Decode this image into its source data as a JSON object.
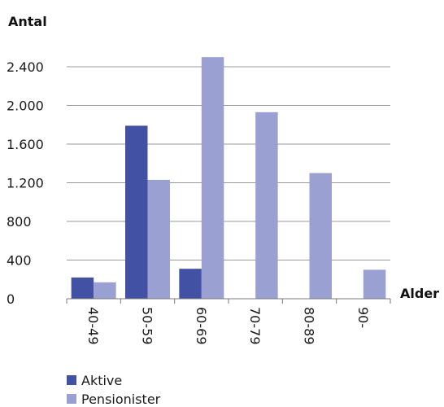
{
  "chart_data": {
    "type": "bar",
    "ylabel": "Antal",
    "xlabel": "Alder",
    "categories": [
      "40-49",
      "50-59",
      "60-69",
      "70-79",
      "80-89",
      "90-"
    ],
    "ylim": [
      0,
      2400
    ],
    "yticks": [
      0,
      400,
      800,
      1200,
      1600,
      2000,
      2400
    ],
    "ytick_labels": [
      "0",
      "400",
      "800",
      "1.200",
      "1.600",
      "2.000",
      "2.400"
    ],
    "grid": true,
    "legend_position": "bottom-left",
    "series": [
      {
        "name": "Aktive",
        "color": "#4351a4",
        "values": [
          220,
          1790,
          310,
          0,
          0,
          0
        ]
      },
      {
        "name": "Pensionister",
        "color": "#9ba0d2",
        "values": [
          170,
          1230,
          2500,
          1930,
          1300,
          300
        ]
      }
    ]
  }
}
